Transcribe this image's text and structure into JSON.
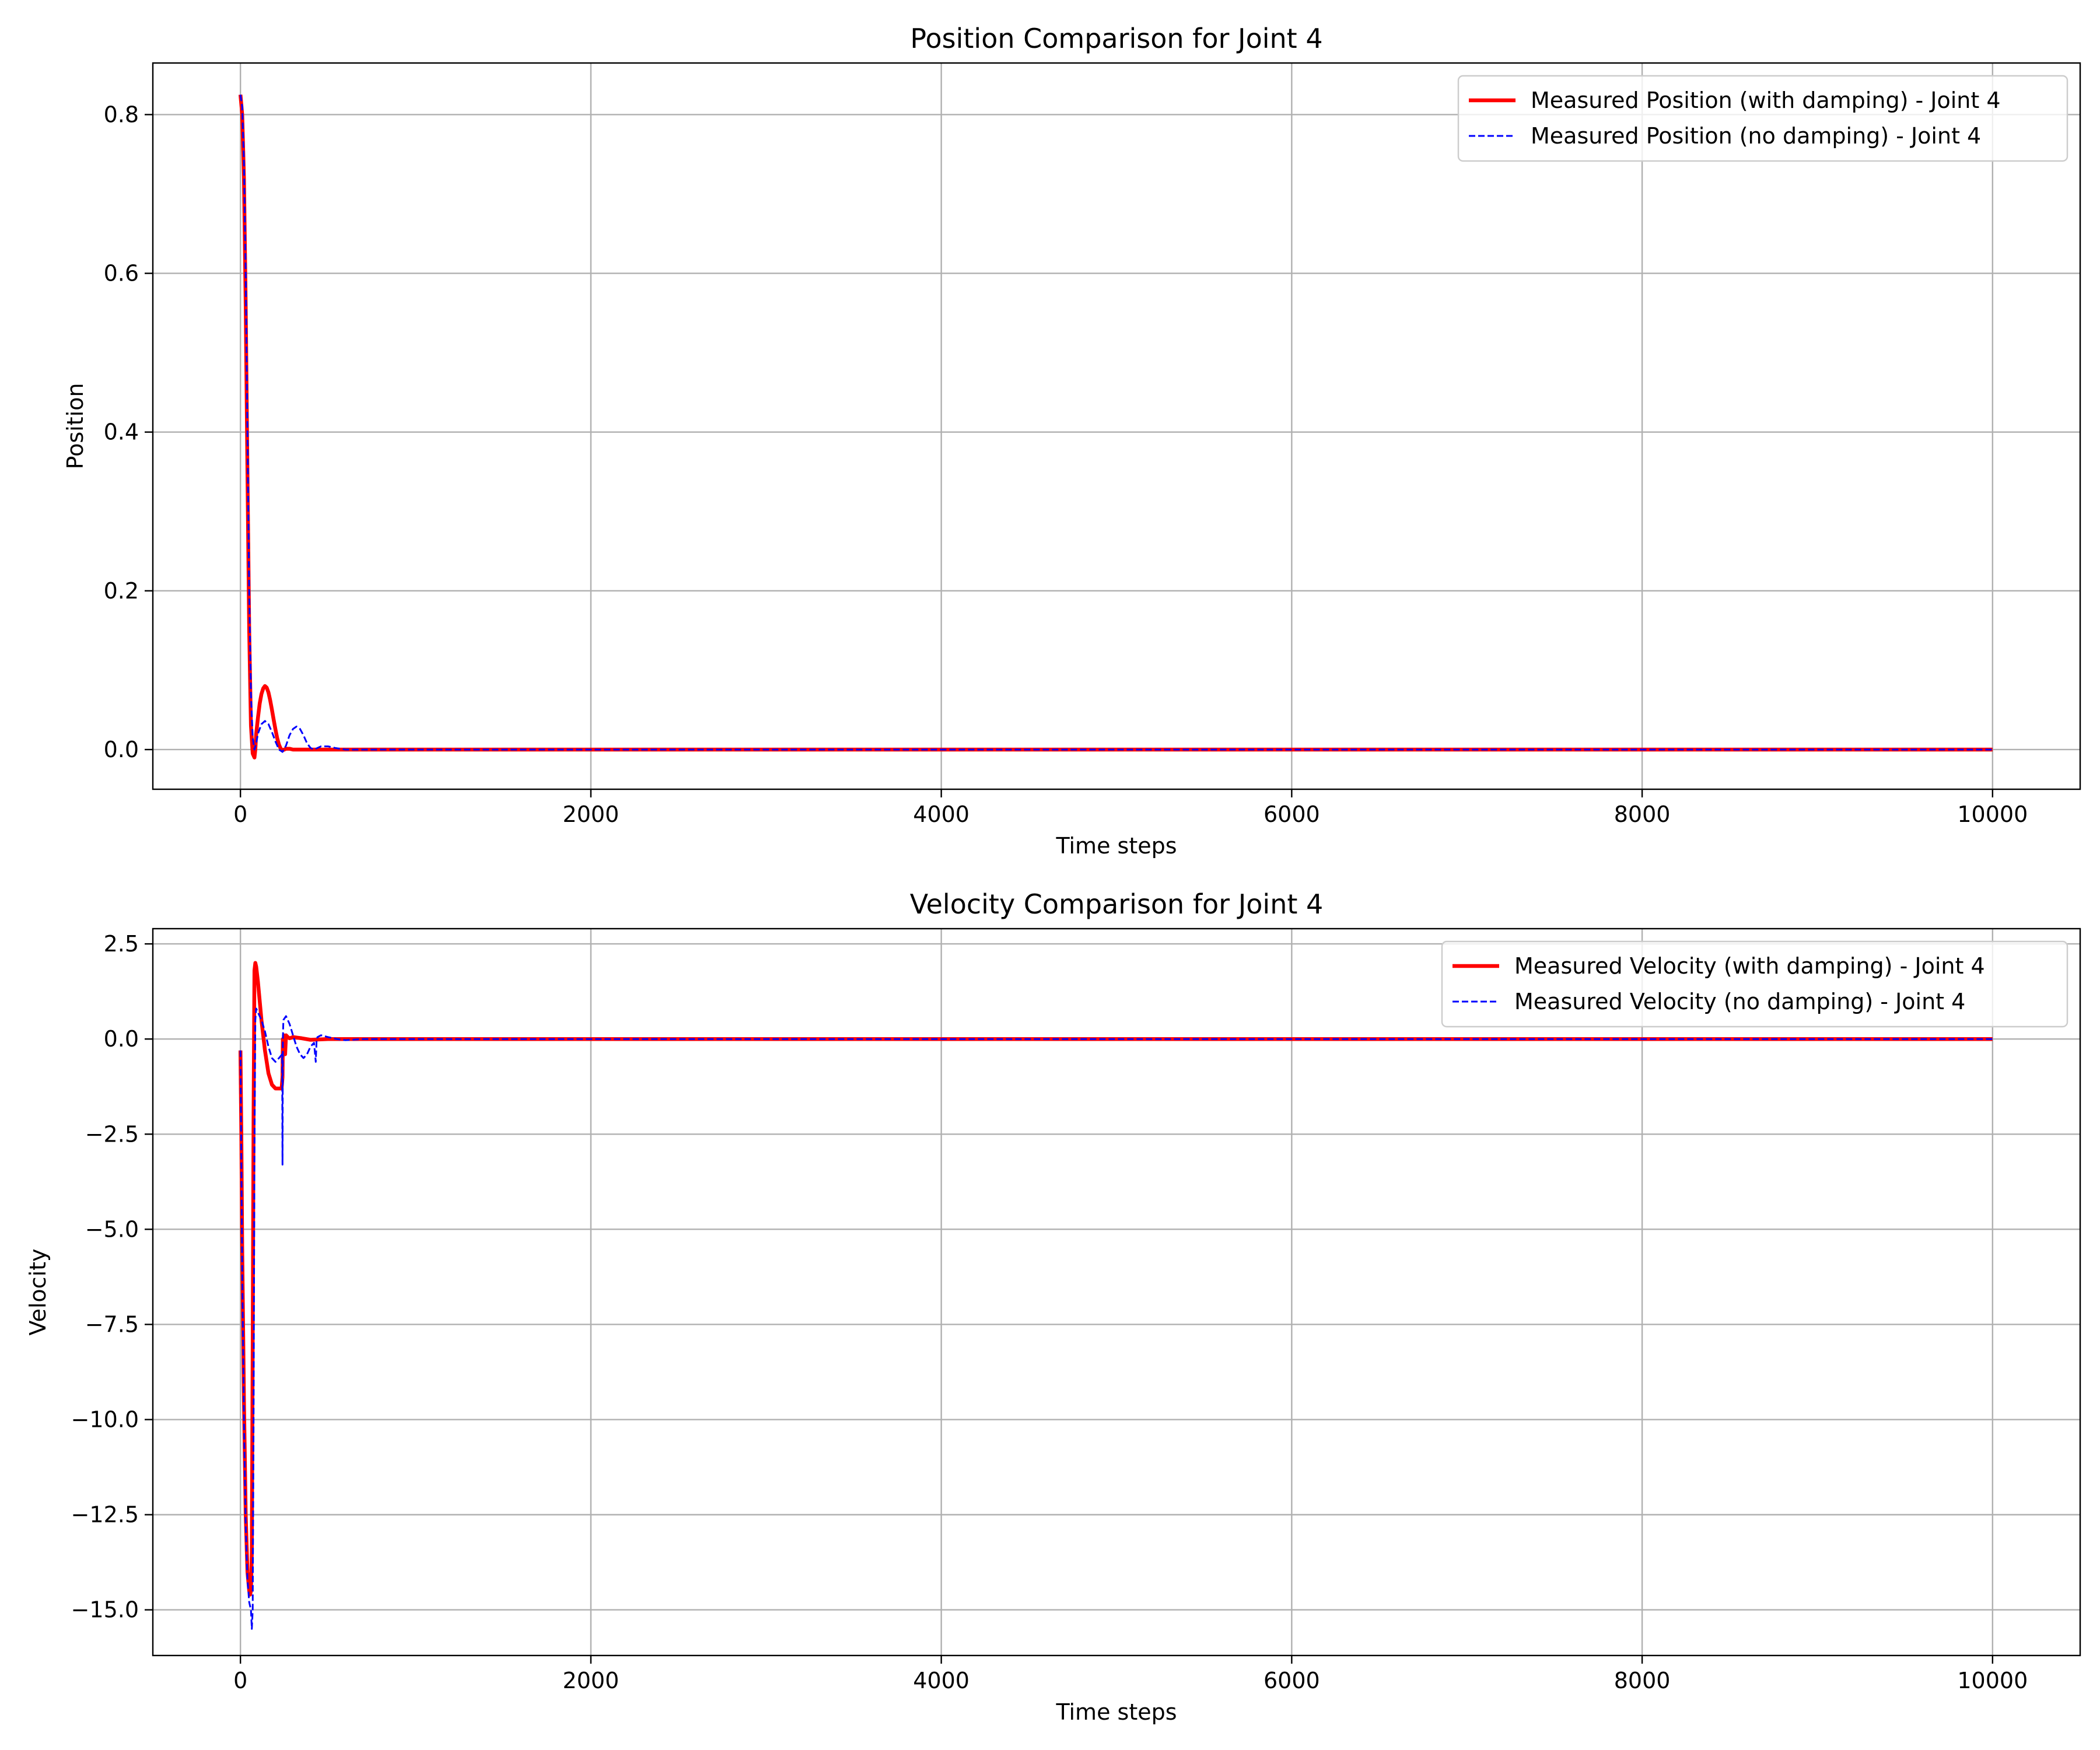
{
  "colors": {
    "damped": "#ff0000",
    "undamped": "#0000ff",
    "grid": "#b0b0b0"
  },
  "chart_data": [
    {
      "type": "line",
      "title": "Position Comparison for Joint 4",
      "xlabel": "Time steps",
      "ylabel": "Position",
      "xlim": [
        -500,
        10500
      ],
      "ylim": [
        -0.05,
        0.865
      ],
      "xticks": [
        0,
        2000,
        4000,
        6000,
        8000,
        10000
      ],
      "xtick_labels": [
        "0",
        "2000",
        "4000",
        "6000",
        "8000",
        "10000"
      ],
      "yticks": [
        0.0,
        0.2,
        0.4,
        0.6,
        0.8
      ],
      "ytick_labels": [
        "0.0",
        "0.2",
        "0.4",
        "0.6",
        "0.8"
      ],
      "grid": true,
      "legend_position": "top-right",
      "series": [
        {
          "name": "Measured Position (with damping) - Joint 4",
          "color": "#ff0000",
          "style": "solid",
          "x": [
            0,
            10,
            20,
            30,
            40,
            50,
            60,
            70,
            80,
            85,
            90,
            100,
            110,
            120,
            130,
            140,
            150,
            160,
            170,
            180,
            190,
            200,
            210,
            220,
            230,
            240,
            250,
            260,
            280,
            300,
            350,
            400,
            500,
            600,
            1000,
            2000,
            4000,
            6000,
            8000,
            10000
          ],
          "y": [
            0.825,
            0.8,
            0.72,
            0.56,
            0.35,
            0.15,
            0.03,
            -0.005,
            -0.01,
            0.0,
            0.02,
            0.04,
            0.058,
            0.07,
            0.077,
            0.08,
            0.078,
            0.072,
            0.062,
            0.05,
            0.037,
            0.025,
            0.014,
            0.006,
            0.001,
            -0.001,
            0.0,
            0.001,
            0.001,
            0.0,
            0.0,
            0.0,
            0.0,
            0.0,
            0.0,
            0.0,
            0.0,
            0.0,
            0.0,
            0.0
          ]
        },
        {
          "name": "Measured Position (no damping) - Joint 4",
          "color": "#0000ff",
          "style": "dashed",
          "x": [
            0,
            10,
            20,
            30,
            40,
            50,
            60,
            70,
            80,
            90,
            100,
            120,
            140,
            160,
            180,
            200,
            220,
            240,
            260,
            280,
            300,
            320,
            340,
            360,
            380,
            400,
            420,
            440,
            460,
            500,
            540,
            600,
            1000,
            2000,
            4000,
            6000,
            8000,
            10000
          ],
          "y": [
            0.825,
            0.81,
            0.74,
            0.6,
            0.4,
            0.2,
            0.07,
            0.015,
            0.0,
            0.008,
            0.02,
            0.032,
            0.036,
            0.032,
            0.022,
            0.01,
            0.0,
            -0.003,
            0.005,
            0.018,
            0.026,
            0.029,
            0.026,
            0.018,
            0.008,
            0.002,
            0.0,
            0.002,
            0.004,
            0.004,
            0.002,
            0.0,
            0.0,
            0.0,
            0.0,
            0.0,
            0.0,
            0.0
          ]
        }
      ]
    },
    {
      "type": "line",
      "title": "Velocity Comparison for Joint 4",
      "xlabel": "Time steps",
      "ylabel": "Velocity",
      "xlim": [
        -500,
        10500
      ],
      "ylim": [
        -16.2,
        2.9
      ],
      "xticks": [
        0,
        2000,
        4000,
        6000,
        8000,
        10000
      ],
      "xtick_labels": [
        "0",
        "2000",
        "4000",
        "6000",
        "8000",
        "10000"
      ],
      "yticks": [
        2.5,
        0.0,
        -2.5,
        -5.0,
        -7.5,
        -10.0,
        -12.5,
        -15.0
      ],
      "ytick_labels": [
        "2.5",
        "0.0",
        "−2.5",
        "−5.0",
        "−7.5",
        "−10.0",
        "−12.5",
        "−15.0"
      ],
      "grid": true,
      "legend_position": "top-right",
      "series": [
        {
          "name": "Measured Velocity (with damping) - Joint 4",
          "color": "#ff0000",
          "style": "solid",
          "x": [
            0,
            5,
            10,
            20,
            30,
            40,
            50,
            55,
            60,
            65,
            70,
            75,
            80,
            85,
            90,
            100,
            110,
            120,
            140,
            160,
            180,
            200,
            220,
            235,
            240,
            242,
            245,
            248,
            250,
            255,
            260,
            270,
            280,
            300,
            350,
            400,
            500,
            600,
            1000,
            2000,
            4000,
            6000,
            8000,
            10000
          ],
          "y": [
            -0.3,
            -2.5,
            -5.5,
            -9.5,
            -12.5,
            -14.0,
            -14.5,
            -14.6,
            -14.5,
            -13.5,
            -8.0,
            -2.0,
            1.8,
            2.0,
            1.9,
            1.5,
            1.0,
            0.5,
            -0.3,
            -0.9,
            -1.2,
            -1.3,
            -1.3,
            -1.3,
            -1.0,
            0.0,
            -0.4,
            0.1,
            0.0,
            -0.4,
            0.1,
            0.05,
            0.02,
            0.05,
            0.02,
            -0.02,
            0.0,
            0.0,
            0.0,
            0.0,
            0.0,
            0.0,
            0.0,
            0.0
          ]
        },
        {
          "name": "Measured Velocity (no damping) - Joint 4",
          "color": "#0000ff",
          "style": "dashed",
          "x": [
            0,
            10,
            20,
            30,
            40,
            50,
            60,
            65,
            70,
            75,
            80,
            85,
            90,
            100,
            120,
            140,
            160,
            180,
            200,
            220,
            238,
            240,
            242,
            245,
            260,
            280,
            300,
            320,
            340,
            360,
            380,
            400,
            420,
            430,
            435,
            440,
            460,
            500,
            550,
            600,
            700,
            1000,
            2000,
            4000,
            6000,
            8000,
            10000
          ],
          "y": [
            -0.3,
            -6.0,
            -10.0,
            -12.8,
            -14.2,
            -14.8,
            -15.0,
            -15.5,
            -15.0,
            -10.0,
            -3.0,
            0.5,
            0.8,
            0.7,
            0.5,
            0.2,
            -0.2,
            -0.5,
            -0.6,
            -0.5,
            -0.4,
            -3.3,
            0.0,
            0.5,
            0.6,
            0.4,
            0.1,
            -0.2,
            -0.4,
            -0.5,
            -0.4,
            -0.2,
            -0.1,
            -0.6,
            0.0,
            0.05,
            0.1,
            0.05,
            0.0,
            -0.03,
            0.0,
            0.0,
            0.0,
            0.0,
            0.0,
            0.0,
            0.0
          ]
        }
      ]
    }
  ]
}
